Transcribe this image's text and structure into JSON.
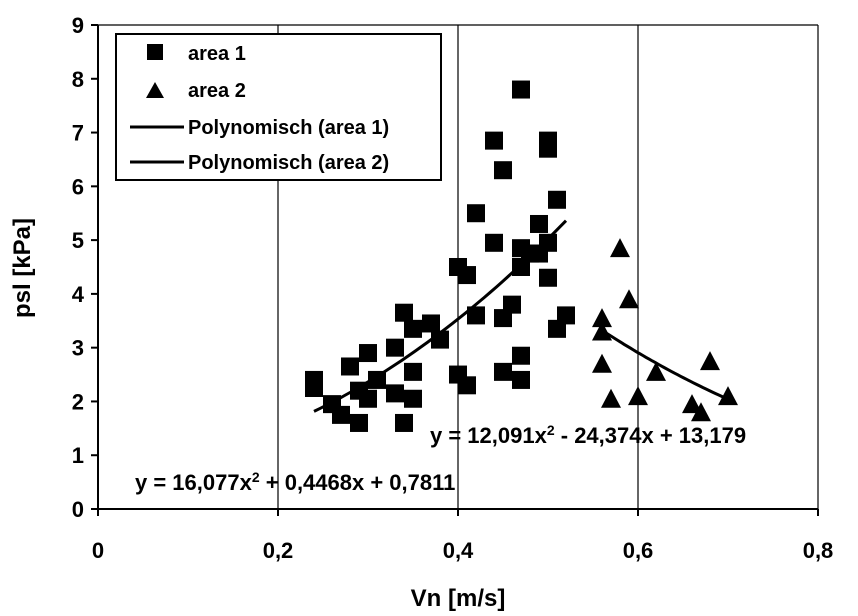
{
  "chart_data": {
    "type": "scatter",
    "xlabel": "Vn [m/s]",
    "ylabel": "psl [kPa]",
    "xlim": [
      0,
      0.8
    ],
    "ylim": [
      0,
      9
    ],
    "x_ticks": [
      0,
      0.2,
      0.4,
      0.6,
      0.8
    ],
    "x_tick_labels": [
      "0",
      "0,2",
      "0,4",
      "0,6",
      "0,8"
    ],
    "y_ticks": [
      0,
      1,
      2,
      3,
      4,
      5,
      6,
      7,
      8,
      9
    ],
    "y_tick_labels": [
      "0",
      "1",
      "2",
      "3",
      "4",
      "5",
      "6",
      "7",
      "8",
      "9"
    ],
    "grid": "vertical",
    "legend_position": "top-left",
    "series": [
      {
        "name": "area 1",
        "marker": "square",
        "color": "#000000",
        "points": [
          [
            0.24,
            2.4
          ],
          [
            0.24,
            2.25
          ],
          [
            0.26,
            1.95
          ],
          [
            0.27,
            1.75
          ],
          [
            0.28,
            2.65
          ],
          [
            0.29,
            1.6
          ],
          [
            0.29,
            2.2
          ],
          [
            0.3,
            2.05
          ],
          [
            0.3,
            2.9
          ],
          [
            0.31,
            2.4
          ],
          [
            0.33,
            3.0
          ],
          [
            0.33,
            2.15
          ],
          [
            0.34,
            1.6
          ],
          [
            0.34,
            3.65
          ],
          [
            0.35,
            2.05
          ],
          [
            0.35,
            2.55
          ],
          [
            0.35,
            3.35
          ],
          [
            0.37,
            3.45
          ],
          [
            0.38,
            3.15
          ],
          [
            0.4,
            4.5
          ],
          [
            0.4,
            2.5
          ],
          [
            0.41,
            4.35
          ],
          [
            0.41,
            2.3
          ],
          [
            0.42,
            5.5
          ],
          [
            0.42,
            3.6
          ],
          [
            0.44,
            4.95
          ],
          [
            0.44,
            6.85
          ],
          [
            0.45,
            6.3
          ],
          [
            0.45,
            3.55
          ],
          [
            0.45,
            2.55
          ],
          [
            0.46,
            3.8
          ],
          [
            0.47,
            7.8
          ],
          [
            0.47,
            4.85
          ],
          [
            0.47,
            4.5
          ],
          [
            0.47,
            2.85
          ],
          [
            0.47,
            2.4
          ],
          [
            0.48,
            4.75
          ],
          [
            0.49,
            5.3
          ],
          [
            0.49,
            4.75
          ],
          [
            0.5,
            6.85
          ],
          [
            0.5,
            6.7
          ],
          [
            0.5,
            4.95
          ],
          [
            0.5,
            4.3
          ],
          [
            0.51,
            5.75
          ],
          [
            0.51,
            3.35
          ],
          [
            0.52,
            3.6
          ]
        ]
      },
      {
        "name": "area 2",
        "marker": "triangle",
        "color": "#000000",
        "points": [
          [
            0.56,
            3.55
          ],
          [
            0.56,
            3.3
          ],
          [
            0.56,
            2.7
          ],
          [
            0.57,
            2.05
          ],
          [
            0.58,
            4.85
          ],
          [
            0.59,
            3.9
          ],
          [
            0.6,
            2.1
          ],
          [
            0.62,
            2.55
          ],
          [
            0.66,
            1.95
          ],
          [
            0.67,
            1.8
          ],
          [
            0.68,
            2.75
          ],
          [
            0.7,
            2.1
          ]
        ]
      }
    ],
    "trendlines": [
      {
        "name": "Polynomisch (area 1)",
        "coefficients": [
          16.077,
          0.4468,
          0.7811
        ],
        "x_range": [
          0.24,
          0.52
        ],
        "equation_label": "y = 16,077x²+ 0,4468x + 0,7811"
      },
      {
        "name": "Polynomisch (area 2)",
        "coefficients": [
          12.091,
          -24.374,
          13.179
        ],
        "x_range": [
          0.56,
          0.7
        ],
        "equation_label": "y = 12,091x² - 24,374x + 13,179"
      }
    ],
    "equations": [
      {
        "prefix": "y = 16,077x",
        "sup": "2",
        "suffix": " + 0,4468x + 0,7811"
      },
      {
        "prefix": "y = 12,091x",
        "sup": "2",
        "suffix": " - 24,374x + 13,179"
      }
    ]
  }
}
